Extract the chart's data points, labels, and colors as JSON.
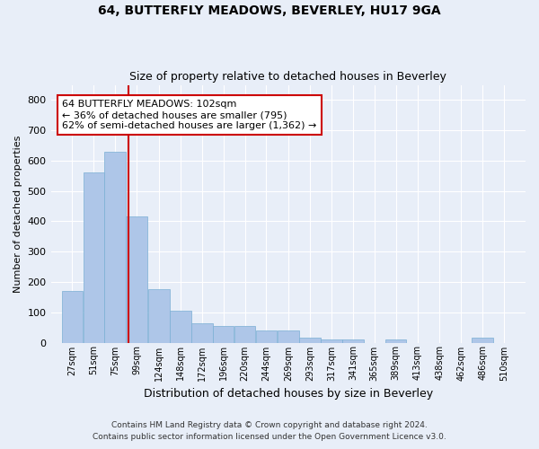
{
  "title": "64, BUTTERFLY MEADOWS, BEVERLEY, HU17 9GA",
  "subtitle": "Size of property relative to detached houses in Beverley",
  "xlabel": "Distribution of detached houses by size in Beverley",
  "ylabel": "Number of detached properties",
  "footnote1": "Contains HM Land Registry data © Crown copyright and database right 2024.",
  "footnote2": "Contains public sector information licensed under the Open Government Licence v3.0.",
  "annotation_line1": "64 BUTTERFLY MEADOWS: 102sqm",
  "annotation_line2": "← 36% of detached houses are smaller (795)",
  "annotation_line3": "62% of semi-detached houses are larger (1,362) →",
  "bar_color": "#aec6e8",
  "bar_edge_color": "#7aafd4",
  "red_line_x": 102,
  "ylim": [
    0,
    850
  ],
  "yticks": [
    0,
    100,
    200,
    300,
    400,
    500,
    600,
    700,
    800
  ],
  "bin_starts": [
    27,
    51,
    75,
    99,
    124,
    148,
    172,
    196,
    220,
    244,
    269,
    293,
    317,
    341,
    365,
    389,
    413,
    438,
    462,
    486,
    510
  ],
  "bin_width": 24,
  "bin_heights": [
    170,
    560,
    630,
    415,
    175,
    105,
    65,
    55,
    55,
    40,
    40,
    15,
    10,
    10,
    0,
    10,
    0,
    0,
    0,
    15,
    0
  ],
  "background_color": "#e8eef8",
  "plot_bg_color": "#e8eef8",
  "grid_color": "#ffffff",
  "title_fontsize": 10,
  "subtitle_fontsize": 9,
  "annotation_fontsize": 8,
  "annotation_box_color": "#ffffff",
  "annotation_box_edge": "#cc0000"
}
